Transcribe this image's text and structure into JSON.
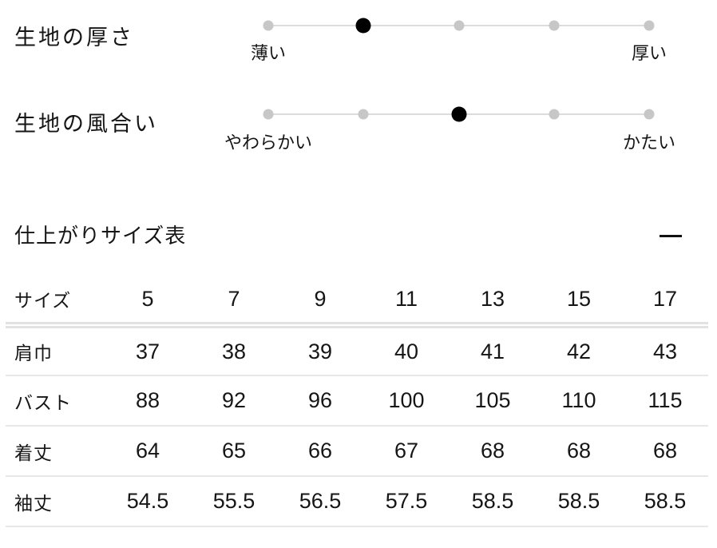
{
  "sliders": [
    {
      "title": "生地の厚さ",
      "left_label": "薄い",
      "right_label": "厚い",
      "steps": 5,
      "selected_index": 1
    },
    {
      "title": "生地の風合い",
      "left_label": "やわらかい",
      "right_label": "かたい",
      "steps": 5,
      "selected_index": 2
    }
  ],
  "size_section": {
    "title": "仕上がりサイズ表",
    "collapse_icon": "minus-icon",
    "table": {
      "header_label": "サイズ",
      "header_values": [
        "5",
        "7",
        "9",
        "11",
        "13",
        "15",
        "17"
      ],
      "rows": [
        {
          "label": "肩巾",
          "values": [
            "37",
            "38",
            "39",
            "40",
            "41",
            "42",
            "43"
          ]
        },
        {
          "label": "バスト",
          "values": [
            "88",
            "92",
            "96",
            "100",
            "105",
            "110",
            "115"
          ]
        },
        {
          "label": "着丈",
          "values": [
            "64",
            "65",
            "66",
            "67",
            "68",
            "68",
            "68"
          ]
        },
        {
          "label": "袖丈",
          "values": [
            "54.5",
            "55.5",
            "56.5",
            "57.5",
            "58.5",
            "58.5",
            "58.5"
          ]
        }
      ]
    }
  },
  "colors": {
    "text": "#161616",
    "track": "#dcdcdc",
    "dot_inactive": "#c7c7c7",
    "dot_active": "#000000",
    "divider": "#e5e5e5",
    "background": "#ffffff"
  }
}
